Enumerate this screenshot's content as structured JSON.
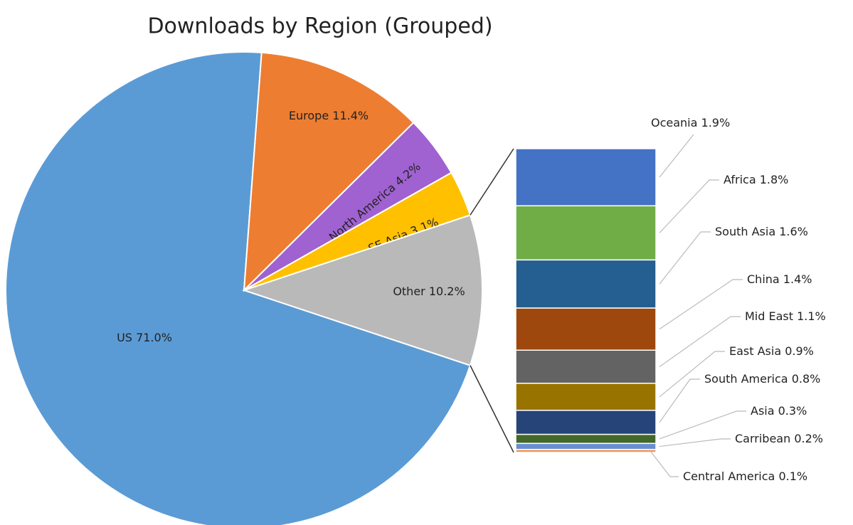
{
  "chart_data": [
    {
      "type": "pie",
      "title": "Downloads by Region (Grouped)",
      "categories": [
        "US",
        "Europe",
        "North America",
        "SE Asia",
        "Other"
      ],
      "values": [
        71.0,
        11.4,
        4.2,
        3.1,
        10.2
      ],
      "value_labels": [
        "71.0%",
        "11.4%",
        "4.2%",
        "3.1%",
        "10.2%"
      ],
      "colors": [
        "#5b9bd5",
        "#ed7d31",
        "#a061d1",
        "#ffc000",
        "#b9b9b9"
      ]
    },
    {
      "type": "stacked-bar",
      "categories": [
        "Oceania",
        "Africa",
        "South Asia",
        "China",
        "Mid East",
        "East Asia",
        "South America",
        "Asia",
        "Carribean",
        "Central America"
      ],
      "values": [
        1.9,
        1.8,
        1.6,
        1.4,
        1.1,
        0.9,
        0.8,
        0.3,
        0.2,
        0.1
      ],
      "value_labels": [
        "1.9%",
        "1.8%",
        "1.6%",
        "1.4%",
        "1.1%",
        "0.9%",
        "0.8%",
        "0.3%",
        "0.2%",
        "0.1%"
      ],
      "colors": [
        "#4472c4",
        "#70ad47",
        "#255e91",
        "#9e480e",
        "#636363",
        "#997300",
        "#264478",
        "#43682b",
        "#698ed0",
        "#f1975a"
      ]
    }
  ]
}
